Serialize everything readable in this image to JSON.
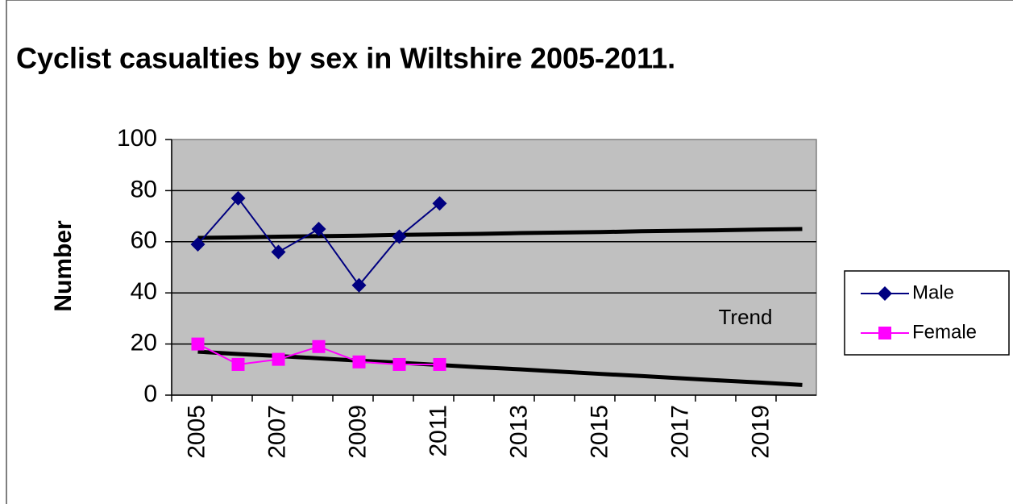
{
  "chart_data": {
    "type": "line",
    "title": "Cyclist casualties by sex in Wiltshire 2005-2011.",
    "y_label": "Number",
    "categories": [
      "2005",
      null,
      "2007",
      null,
      "2009",
      null,
      "2011",
      null,
      "2013",
      null,
      "2015",
      null,
      "2017",
      null,
      "2019",
      null
    ],
    "series": [
      {
        "name": "Male",
        "color": "#000080",
        "marker": "diamond",
        "values": [
          59,
          77,
          56,
          65,
          43,
          62,
          75,
          null,
          null,
          null,
          null,
          null,
          null,
          null,
          null,
          null
        ]
      },
      {
        "name": "Female",
        "color": "#ff00ff",
        "marker": "square",
        "values": [
          20,
          12,
          14,
          19,
          13,
          12,
          12,
          null,
          null,
          null,
          null,
          null,
          null,
          null,
          null,
          null
        ]
      }
    ],
    "trends": [
      {
        "color": "#000000",
        "values": [
          61.5,
          61.7,
          62.0,
          62.2,
          62.4,
          62.7,
          62.9,
          63.1,
          63.4,
          63.6,
          63.8,
          64.1,
          64.3,
          64.5,
          64.8,
          65.0
        ]
      },
      {
        "color": "#000000",
        "values": [
          17,
          16.1,
          15.3,
          14.4,
          13.5,
          12.7,
          11.8,
          10.9,
          10.1,
          9.2,
          8.3,
          7.5,
          6.6,
          5.7,
          4.9,
          4.0
        ]
      }
    ],
    "annotation": "Trend",
    "ylim": [
      0,
      100
    ],
    "yticks": [
      0,
      20,
      40,
      60,
      80,
      100
    ],
    "grid": true,
    "plot_background": "#c0c0c0",
    "legend": "right"
  }
}
